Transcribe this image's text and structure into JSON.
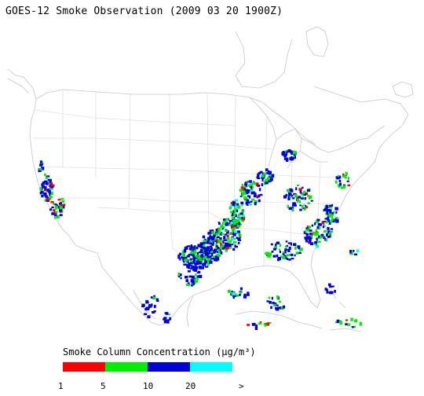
{
  "title": "GOES-12 Smoke Observation (2009 03 20  1900Z)",
  "legend": {
    "title": "Smoke Column Concentration (μg/m³)",
    "bins": [
      {
        "label": "1",
        "color": "#ff0000"
      },
      {
        "label": "5",
        "color": "#00ee00"
      },
      {
        "label": "10",
        "color": "#0000dd"
      },
      {
        "label": "20",
        "color": "#00ffff"
      }
    ],
    "overflow_label": ">"
  },
  "colors": {
    "land_outline": "#c8c8c8",
    "border": "#d0d0d0"
  }
}
